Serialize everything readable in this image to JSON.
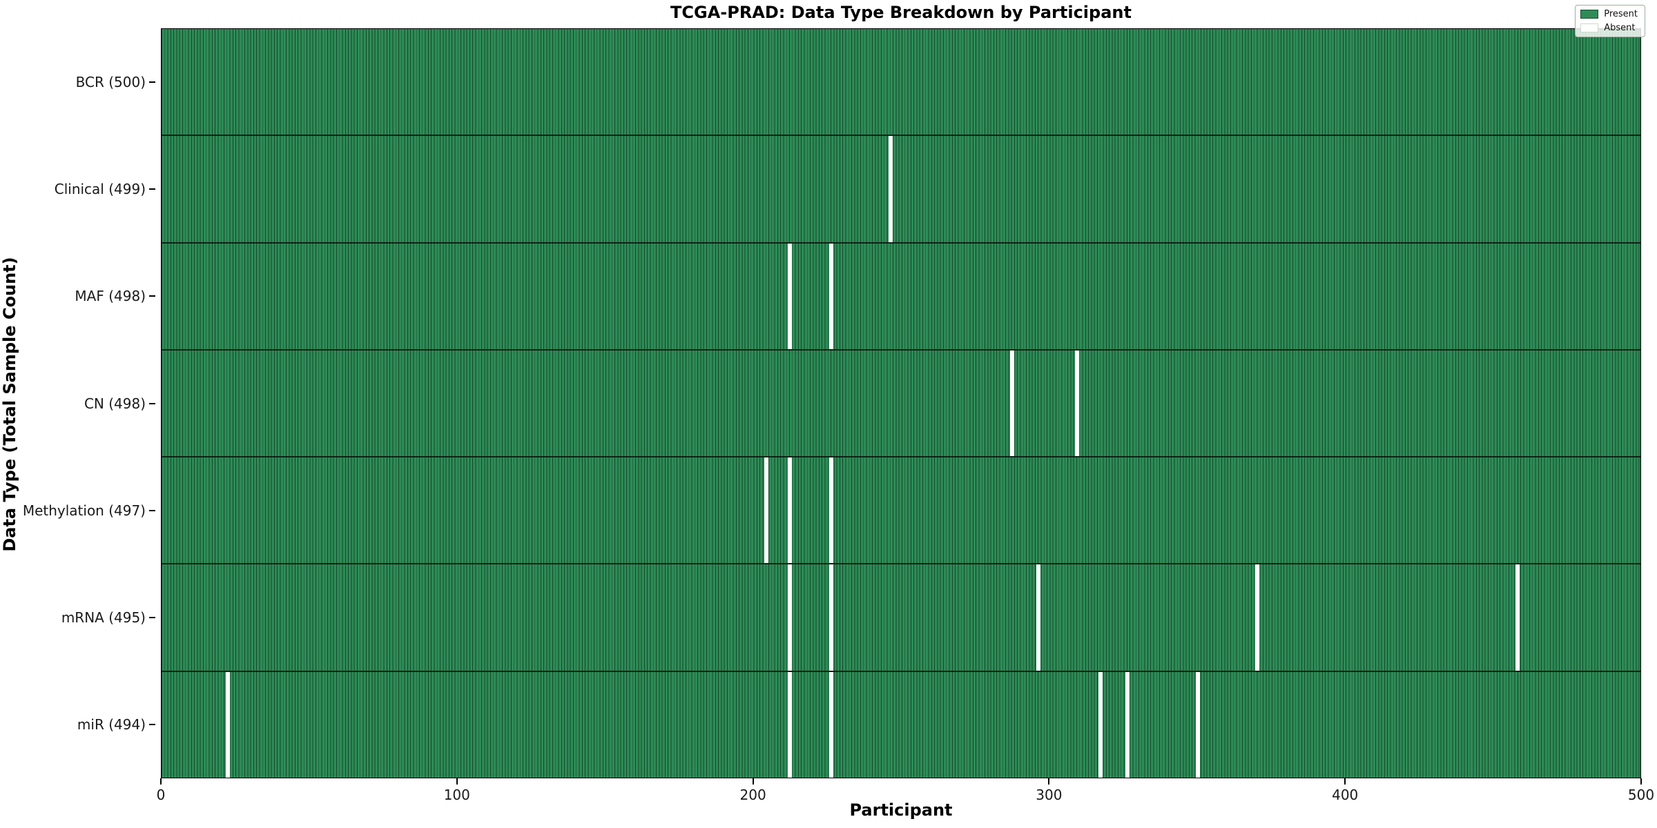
{
  "title": "TCGA-PRAD: Data Type Breakdown by Participant",
  "xlabel": "Participant",
  "ylabel": "Data Type (Total Sample Count)",
  "legend": {
    "present_label": "Present",
    "absent_label": "Absent"
  },
  "colors": {
    "present": "#2e8b57",
    "absent": "#ffffff",
    "bar_edge": "#14482a",
    "legend_bg": "#f2f6f2"
  },
  "chart_data": {
    "type": "heatmap",
    "title": "TCGA-PRAD: Data Type Breakdown by Participant",
    "xlabel": "Participant",
    "ylabel": "Data Type (Total Sample Count)",
    "x_range": [
      0,
      500
    ],
    "x_ticks": [
      0,
      100,
      200,
      300,
      400,
      500
    ],
    "grid": false,
    "legend_position": "upper right",
    "legend": [
      {
        "label": "Present",
        "color": "#2e8b57"
      },
      {
        "label": "Absent",
        "color": "#ffffff"
      }
    ],
    "rows": [
      {
        "label": "BCR (500)",
        "data_type": "BCR",
        "total_samples": 500,
        "absent_participants": []
      },
      {
        "label": "Clinical (499)",
        "data_type": "Clinical",
        "total_samples": 499,
        "absent_participants": [
          246
        ]
      },
      {
        "label": "MAF (498)",
        "data_type": "MAF",
        "total_samples": 498,
        "absent_participants": [
          212,
          226
        ]
      },
      {
        "label": "CN (498)",
        "data_type": "CN",
        "total_samples": 498,
        "absent_participants": [
          287,
          309
        ]
      },
      {
        "label": "Methylation (497)",
        "data_type": "Methylation",
        "total_samples": 497,
        "absent_participants": [
          204,
          212,
          226
        ]
      },
      {
        "label": "mRNA (495)",
        "data_type": "mRNA",
        "total_samples": 495,
        "absent_participants": [
          212,
          226,
          296,
          370,
          458
        ]
      },
      {
        "label": "miR (494)",
        "data_type": "miR",
        "total_samples": 494,
        "absent_participants": [
          22,
          212,
          226,
          317,
          326,
          350
        ]
      }
    ]
  }
}
